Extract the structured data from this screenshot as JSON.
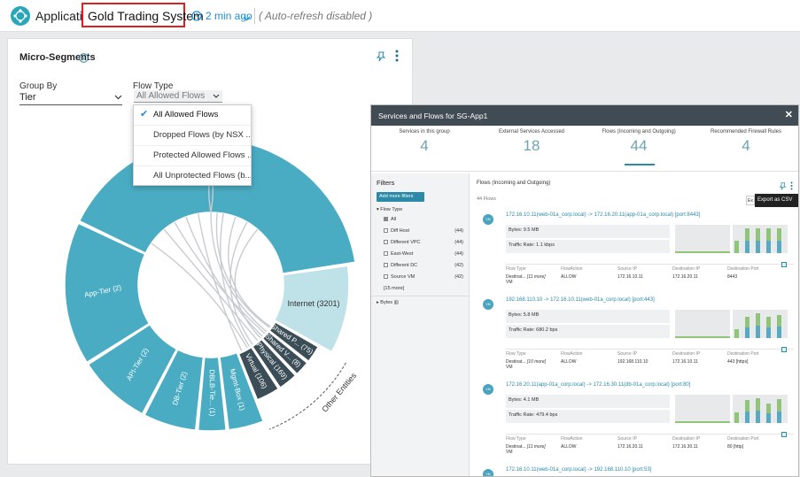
{
  "header": {
    "app_label": "Application",
    "title": "Gold Trading System",
    "time": "2 min ago",
    "auto_refresh_label": "( Auto-refresh",
    "auto_refresh_state": "disabled )"
  },
  "panel": {
    "title": "Micro-Segments",
    "group_by_label": "Group By",
    "group_by_value": "Tier",
    "flow_type_label": "Flow Type",
    "flow_type_value": "All Allowed Flows",
    "flow_type_options": [
      "All Allowed Flows",
      "Dropped Flows (by NSX ...",
      "Protected Allowed Flows ...",
      "All Unprotected Flows (b..."
    ]
  },
  "chord": {
    "segments": [
      {
        "label": "App-Tier (2)"
      },
      {
        "label": "API-Tier (2)"
      },
      {
        "label": "DB-Tier (2)"
      },
      {
        "label": "DBLB-Tie... (1)"
      },
      {
        "label": "Mgmt-Box (1)"
      },
      {
        "label": "Virtual (106)"
      },
      {
        "label": "Physical (169)"
      },
      {
        "label": "Shared V... (8)"
      },
      {
        "label": "Shared P... (75)"
      },
      {
        "label": "Internet (3201)"
      }
    ],
    "group_label": "Other Entities",
    "colors": {
      "tier": "#4aacc2",
      "dark": "#3b4d57",
      "internet": "#bfe1e8"
    }
  },
  "modal": {
    "title": "Services and Flows for SG-App1",
    "stats": [
      {
        "label": "Services in this group",
        "value": "4"
      },
      {
        "label": "External Services Accessed",
        "value": "18"
      },
      {
        "label": "Flows (Incoming and Outgoing)",
        "value": "44"
      },
      {
        "label": "Recommended Firewall Rules",
        "value": "4"
      }
    ],
    "filters": {
      "title": "Filters",
      "add_button": "Add more filters",
      "group": "Flow Type",
      "items": [
        {
          "label": "All",
          "count": ""
        },
        {
          "label": "Diff Host",
          "count": "(44)"
        },
        {
          "label": "Different VPC",
          "count": "(44)"
        },
        {
          "label": "East-West",
          "count": "(44)"
        },
        {
          "label": "Different DC",
          "count": "(42)"
        },
        {
          "label": "Source VM",
          "count": "(42)"
        }
      ],
      "more": "[15 more]",
      "bytes": "Bytes"
    },
    "content_title": "Flows (Incoming and Outgoing)",
    "flow_count": "44 Flows",
    "export_short": "Ex",
    "export_label": "Export as CSV",
    "flows": [
      {
        "link": "172.16.10.11(web-01a_corp.local) -> 172.16.20.11(app-01a_corp.local) [port:8443]",
        "bytes": "Bytes: 9.5 MB",
        "rate": "Traffic Rate: 1.1 kbps",
        "flow_type_h": "Flow Type",
        "flow_type_v": "Destinat...",
        "flow_type_more": "[11 more]",
        "flow_type_v2": "VM",
        "action_h": "FlowAction",
        "action_v": "ALLOW",
        "src_h": "Source IP",
        "src_v": "172.16.10.11",
        "dst_h": "Destination IP",
        "dst_v": "172.16.20.11",
        "port_h": "Destination Port",
        "port_v": "8443"
      },
      {
        "link": "192.168.110.10 -> 172.16.10.11(web-01a_corp.local) [port:443]",
        "bytes": "Bytes: 5.8 MB",
        "rate": "Traffic Rate: 680.2 bps",
        "flow_type_h": "Flow Type",
        "flow_type_v": "Destinat...",
        "flow_type_more": "[10 more]",
        "flow_type_v2": "VM",
        "action_h": "FlowAction",
        "action_v": "ALLOW",
        "src_h": "Source IP",
        "src_v": "192.168.110.10",
        "dst_h": "Destination IP",
        "dst_v": "172.16.10.11",
        "port_h": "Destination Port",
        "port_v": "443 [https]"
      },
      {
        "link": "172.16.20.11(app-01a_corp.local) -> 172.16.30.11(db-01a_corp.local) [port:80]",
        "bytes": "Bytes: 4.1 MB",
        "rate": "Traffic Rate: 479.4 bps",
        "flow_type_h": "Flow Type",
        "flow_type_v": "Destinat...",
        "flow_type_more": "[11 more]",
        "flow_type_v2": "VM",
        "action_h": "FlowAction",
        "action_v": "ALLOW",
        "src_h": "Source IP",
        "src_v": "172.16.20.11",
        "dst_h": "Destination IP",
        "dst_v": "172.16.30.11",
        "port_h": "Destination Port",
        "port_v": "80 [http]"
      }
    ],
    "last_link": "172.16.10.11(web-01a_corp.local) -> 192.168.110.10 [port:53]"
  }
}
